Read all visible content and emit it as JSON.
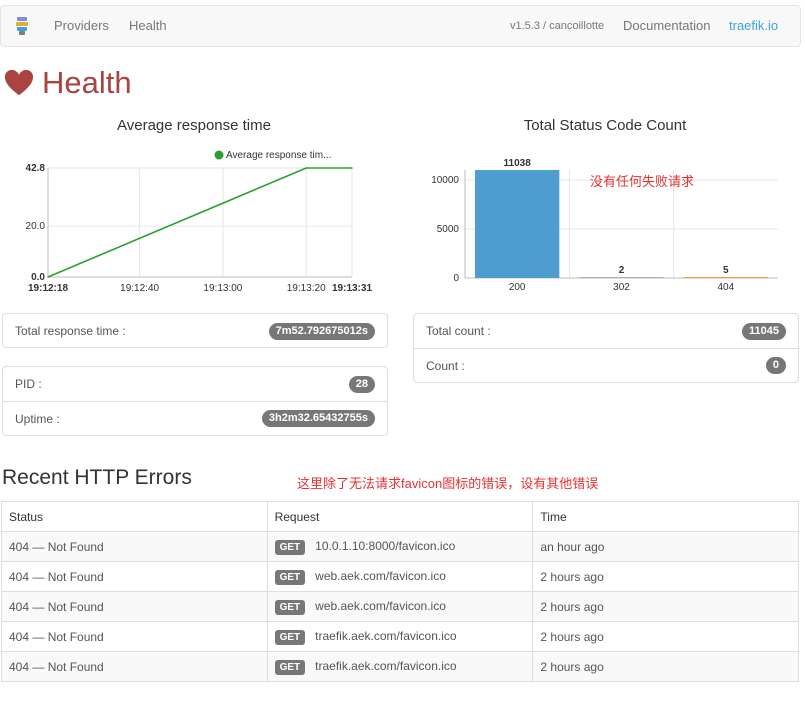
{
  "navbar": {
    "items": [
      "Providers",
      "Health"
    ],
    "version": "v1.5.3 / cancoillotte",
    "documentation": "Documentation",
    "site": "traefik.io"
  },
  "page": {
    "title": "Health"
  },
  "charts": {
    "left_title": "Average response time",
    "right_title": "Total Status Code Count",
    "right_note": "没有任何失败请求"
  },
  "chart_data": [
    {
      "type": "line",
      "title": "Average response time",
      "legend": "Average response tim...",
      "x": [
        "19:12:18",
        "19:13:20",
        "19:13:31"
      ],
      "values": [
        0,
        42.8,
        42.8
      ],
      "xticks": [
        "19:12:18",
        "19:12:40",
        "19:13:00",
        "19:13:20",
        "19:13:31"
      ],
      "yticks": [
        "0.0",
        "20.0",
        "42.8"
      ],
      "ylim": [
        0,
        42.8
      ],
      "color": "#2ca02c"
    },
    {
      "type": "bar",
      "title": "Total Status Code Count",
      "categories": [
        "200",
        "302",
        "404"
      ],
      "values": [
        11038,
        2,
        5
      ],
      "yticks": [
        "0",
        "5000",
        "10000"
      ],
      "ylim": [
        0,
        11038
      ],
      "colors": [
        "#4f9cd0",
        "#b0b0b0",
        "#f0a030"
      ]
    }
  ],
  "stats": {
    "total_response_time_label": "Total response time :",
    "total_response_time": "7m52.792675012s",
    "pid_label": "PID :",
    "pid": "28",
    "uptime_label": "Uptime :",
    "uptime": "3h2m32.65432755s",
    "total_count_label": "Total count :",
    "total_count": "11045",
    "count_label": "Count :",
    "count": "0"
  },
  "errors": {
    "title": "Recent HTTP Errors",
    "note": "这里除了无法请求favicon图标的错误，设有其他错误",
    "headers": [
      "Status",
      "Request",
      "Time"
    ],
    "rows": [
      {
        "status": "404 — Not Found",
        "method": "GET",
        "url": "10.0.1.10:8000/favicon.ico",
        "time": "an hour ago"
      },
      {
        "status": "404 — Not Found",
        "method": "GET",
        "url": "web.aek.com/favicon.ico",
        "time": "2 hours ago"
      },
      {
        "status": "404 — Not Found",
        "method": "GET",
        "url": "web.aek.com/favicon.ico",
        "time": "2 hours ago"
      },
      {
        "status": "404 — Not Found",
        "method": "GET",
        "url": "traefik.aek.com/favicon.ico",
        "time": "2 hours ago"
      },
      {
        "status": "404 — Not Found",
        "method": "GET",
        "url": "traefik.aek.com/favicon.ico",
        "time": "2 hours ago"
      }
    ]
  }
}
